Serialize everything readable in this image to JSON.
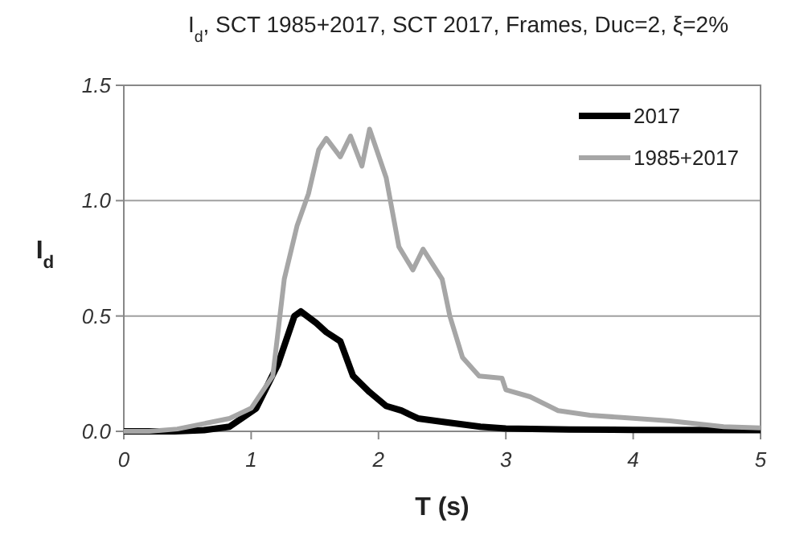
{
  "chart_data": {
    "type": "line",
    "title": "I$_{d}$, SCT 1985+2017, SCT 2017, Frames, Duc=2, ξ=2%",
    "xlabel": "T (s)",
    "ylabel": "I$_{d}$",
    "xlim": [
      0,
      5
    ],
    "ylim": [
      0,
      1.5
    ],
    "xticks": [
      0,
      1,
      2,
      3,
      4,
      5
    ],
    "yticks": [
      {
        "value": 0,
        "label": "0.0"
      },
      {
        "value": 0.5,
        "label": "0.5"
      },
      {
        "value": 1,
        "label": "1.0"
      },
      {
        "value": 1.5,
        "label": "1.5"
      }
    ],
    "grid": "y",
    "legend": "top right",
    "line_style": "solid",
    "marker": "none",
    "series": [
      {
        "name": "2017",
        "color": "#000000",
        "x": [
          0,
          0.4,
          0.63,
          0.83,
          1.04,
          1.21,
          1.34,
          1.39,
          1.51,
          1.59,
          1.7,
          1.8,
          1.93,
          2.06,
          2.18,
          2.31,
          2.52,
          2.8,
          3,
          3.5,
          4,
          5
        ],
        "values": [
          0,
          0,
          0.005,
          0.02,
          0.1,
          0.29,
          0.5,
          0.52,
          0.47,
          0.43,
          0.39,
          0.24,
          0.17,
          0.11,
          0.09,
          0.056,
          0.04,
          0.02,
          0.012,
          0.008,
          0.006,
          0.005
        ]
      },
      {
        "name": "1985+2017",
        "color": "#a6a6a6",
        "x": [
          0,
          0.2,
          0.42,
          0.6,
          0.83,
          1.0,
          1.17,
          1.26,
          1.36,
          1.45,
          1.53,
          1.59,
          1.7,
          1.78,
          1.87,
          1.93,
          2.06,
          2.16,
          2.27,
          2.35,
          2.5,
          2.56,
          2.66,
          2.79,
          2.97,
          3.0,
          3.19,
          3.41,
          3.66,
          3.91,
          4.29,
          4.71,
          5
        ],
        "values": [
          0,
          0,
          0.01,
          0.03,
          0.056,
          0.1,
          0.24,
          0.66,
          0.89,
          1.03,
          1.22,
          1.27,
          1.19,
          1.28,
          1.15,
          1.31,
          1.1,
          0.8,
          0.7,
          0.79,
          0.66,
          0.5,
          0.32,
          0.24,
          0.23,
          0.18,
          0.15,
          0.09,
          0.07,
          0.06,
          0.045,
          0.02,
          0.015
        ]
      }
    ]
  }
}
